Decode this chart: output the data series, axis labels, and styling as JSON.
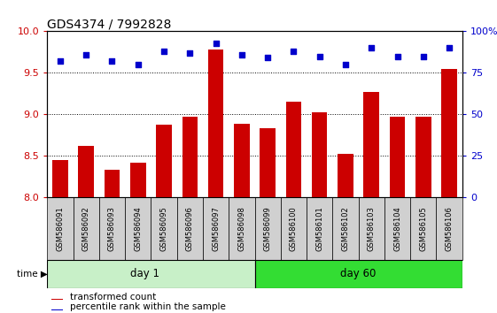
{
  "title": "GDS4374 / 7992828",
  "samples": [
    "GSM586091",
    "GSM586092",
    "GSM586093",
    "GSM586094",
    "GSM586095",
    "GSM586096",
    "GSM586097",
    "GSM586098",
    "GSM586099",
    "GSM586100",
    "GSM586101",
    "GSM586102",
    "GSM586103",
    "GSM586104",
    "GSM586105",
    "GSM586106"
  ],
  "transformed_count": [
    8.45,
    8.62,
    8.33,
    8.42,
    8.87,
    8.97,
    9.78,
    8.88,
    8.83,
    9.15,
    9.02,
    8.52,
    9.27,
    8.97,
    8.97,
    9.55
  ],
  "percentile_rank": [
    82,
    86,
    82,
    80,
    88,
    87,
    93,
    86,
    84,
    88,
    85,
    80,
    90,
    85,
    85,
    90
  ],
  "day1_indices": [
    0,
    1,
    2,
    3,
    4,
    5,
    6,
    7
  ],
  "day60_indices": [
    8,
    9,
    10,
    11,
    12,
    13,
    14,
    15
  ],
  "ylim_left": [
    8,
    10
  ],
  "ylim_right": [
    0,
    100
  ],
  "yticks_left": [
    8,
    8.5,
    9,
    9.5,
    10
  ],
  "yticks_right": [
    0,
    25,
    50,
    75,
    100
  ],
  "bar_color": "#cc0000",
  "dot_color": "#0000cc",
  "day1_color": "#c8f0c8",
  "day60_color": "#33dd33",
  "sample_box_color": "#d0d0d0",
  "legend_bar_label": "transformed count",
  "legend_dot_label": "percentile rank within the sample",
  "time_label": "time",
  "day1_label": "day 1",
  "day60_label": "day 60",
  "title_fontsize": 10,
  "tick_fontsize": 8,
  "label_fontsize": 6.5
}
